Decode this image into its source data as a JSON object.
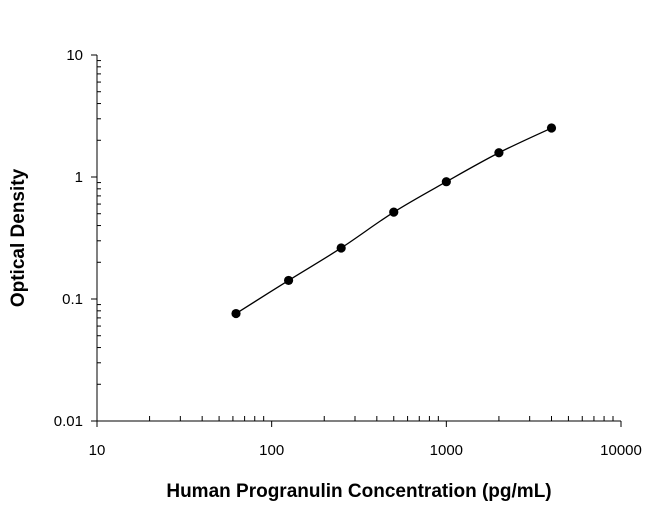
{
  "chart_data": {
    "type": "scatter",
    "title": "",
    "xlabel": "Human Progranulin Concentration (pg/mL)",
    "ylabel": "Optical Density",
    "x_scale": "log",
    "y_scale": "log",
    "xlim": [
      10,
      10000
    ],
    "ylim": [
      0.01,
      10
    ],
    "x_ticks": [
      {
        "value": 10,
        "label": "10"
      },
      {
        "value": 100,
        "label": "100"
      },
      {
        "value": 1000,
        "label": "1000"
      },
      {
        "value": 10000,
        "label": "10000"
      }
    ],
    "y_ticks": [
      {
        "value": 10,
        "label": "10"
      },
      {
        "value": 1,
        "label": "1"
      },
      {
        "value": 0.1,
        "label": "0.1"
      },
      {
        "value": 0.01,
        "label": "0.01"
      }
    ],
    "grid": false,
    "legend": "none",
    "series": [
      {
        "color": "#000000",
        "fit_line": true,
        "x": [
          62.5,
          125,
          250,
          500,
          1000,
          2000,
          4000
        ],
        "y": [
          0.076,
          0.142,
          0.262,
          0.515,
          0.915,
          1.58,
          2.52
        ]
      }
    ]
  }
}
